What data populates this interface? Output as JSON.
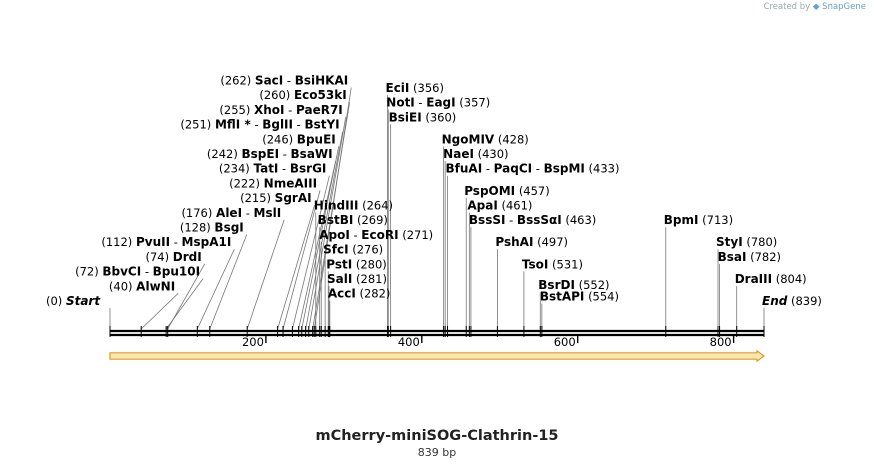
{
  "credit": {
    "prefix": "Created by",
    "brand": "SnapGene"
  },
  "title": "mCherry-miniSOG-Clathrin-15",
  "length_label": "839 bp",
  "colors": {
    "backbone": "#000000",
    "feature_fill": "#f7e8b4",
    "feature_stroke": "#e39a1e",
    "leader": "#777777"
  },
  "ruler": {
    "ticks": [
      200,
      400,
      600,
      800
    ],
    "total_bp": 839
  },
  "feature": {
    "name": "mCherry-miniSOG-Clathrin-15",
    "start": 0,
    "end": 839,
    "direction": "forward"
  },
  "sites": [
    {
      "id": "start",
      "row": 0,
      "pos": 0,
      "pos_label": "(0)",
      "parts": [
        {
          "text": "Start",
          "italic": true
        }
      ],
      "pos_after": false
    },
    {
      "id": "alwni",
      "row": 1,
      "pos": 40,
      "pos_label": "(40)",
      "parts": [
        {
          "text": "AlwNI"
        }
      ],
      "pos_after": false
    },
    {
      "id": "bbvci",
      "row": 2,
      "pos": 72,
      "pos_label": "(72)",
      "parts": [
        {
          "text": "BbvCI"
        },
        {
          "text": "Bpu10I"
        }
      ],
      "pos_after": false
    },
    {
      "id": "drdi",
      "row": 3,
      "pos": 74,
      "pos_label": "(74)",
      "parts": [
        {
          "text": "DrdI"
        }
      ],
      "pos_after": false
    },
    {
      "id": "pvuii",
      "row": 4,
      "pos": 112,
      "pos_label": "(112)",
      "parts": [
        {
          "text": "PvuII"
        },
        {
          "text": "MspA1I"
        }
      ],
      "pos_after": false
    },
    {
      "id": "bsgi",
      "row": 5,
      "pos": 128,
      "pos_label": "(128)",
      "parts": [
        {
          "text": "BsgI"
        }
      ],
      "pos_after": false
    },
    {
      "id": "alei",
      "row": 6,
      "pos": 176,
      "pos_label": "(176)",
      "parts": [
        {
          "text": "AleI"
        },
        {
          "text": "MslI"
        }
      ],
      "pos_after": false
    },
    {
      "id": "sgrai",
      "row": 7,
      "pos": 215,
      "pos_label": "(215)",
      "parts": [
        {
          "text": "SgrAI"
        }
      ],
      "pos_after": false
    },
    {
      "id": "nmeaiii",
      "row": 8,
      "pos": 222,
      "pos_label": "(222)",
      "parts": [
        {
          "text": "NmeAIII"
        }
      ],
      "pos_after": false
    },
    {
      "id": "tati",
      "row": 9,
      "pos": 234,
      "pos_label": "(234)",
      "parts": [
        {
          "text": "TatI"
        },
        {
          "text": "BsrGI"
        }
      ],
      "pos_after": false
    },
    {
      "id": "bspei",
      "row": 10,
      "pos": 242,
      "pos_label": "(242)",
      "parts": [
        {
          "text": "BspEI"
        },
        {
          "text": "BsaWI"
        }
      ],
      "pos_after": false
    },
    {
      "id": "bpuei",
      "row": 11,
      "pos": 246,
      "pos_label": "(246)",
      "parts": [
        {
          "text": "BpuEI"
        }
      ],
      "pos_after": false
    },
    {
      "id": "mfli",
      "row": 12,
      "pos": 251,
      "pos_label": "(251)",
      "parts": [
        {
          "text": "MflI *"
        },
        {
          "text": "BglII"
        },
        {
          "text": "BstYI"
        }
      ],
      "pos_after": false
    },
    {
      "id": "xhoi",
      "row": 13,
      "pos": 255,
      "pos_label": "(255)",
      "parts": [
        {
          "text": "XhoI"
        },
        {
          "text": "PaeR7I"
        }
      ],
      "pos_after": false
    },
    {
      "id": "eco53ki",
      "row": 14,
      "pos": 260,
      "pos_label": "(260)",
      "parts": [
        {
          "text": "Eco53kI"
        }
      ],
      "pos_after": false
    },
    {
      "id": "saci",
      "row": 15,
      "pos": 262,
      "pos_label": "(262)",
      "parts": [
        {
          "text": "SacI"
        },
        {
          "text": "BsiHKAI"
        }
      ],
      "pos_after": false
    },
    {
      "id": "hindiii",
      "row": 6.5,
      "pos": 264,
      "pos_label": "(264)",
      "parts": [
        {
          "text": "HindIII"
        }
      ],
      "pos_after": true
    },
    {
      "id": "bstbi",
      "row": 5.5,
      "pos": 269,
      "pos_label": "(269)",
      "parts": [
        {
          "text": "BstBI"
        }
      ],
      "pos_after": true
    },
    {
      "id": "apoi",
      "row": 4.5,
      "pos": 271,
      "pos_label": "(271)",
      "parts": [
        {
          "text": "ApoI"
        },
        {
          "text": "EcoRI"
        }
      ],
      "pos_after": true
    },
    {
      "id": "sfci",
      "row": 3.5,
      "pos": 276,
      "pos_label": "(276)",
      "parts": [
        {
          "text": "SfcI"
        }
      ],
      "pos_after": true
    },
    {
      "id": "psti",
      "row": 2.5,
      "pos": 280,
      "pos_label": "(280)",
      "parts": [
        {
          "text": "PstI"
        }
      ],
      "pos_after": true
    },
    {
      "id": "sali",
      "row": 1.5,
      "pos": 281,
      "pos_label": "(281)",
      "parts": [
        {
          "text": "SalI"
        }
      ],
      "pos_after": true
    },
    {
      "id": "acci",
      "row": 0.5,
      "pos": 282,
      "pos_label": "(282)",
      "parts": [
        {
          "text": "AccI"
        }
      ],
      "pos_after": true
    },
    {
      "id": "ecii",
      "row": 14.5,
      "pos": 356,
      "pos_label": "(356)",
      "parts": [
        {
          "text": "EciI"
        }
      ],
      "pos_after": true
    },
    {
      "id": "noti",
      "row": 13.5,
      "pos": 357,
      "pos_label": "(357)",
      "parts": [
        {
          "text": "NotI"
        },
        {
          "text": "EagI"
        }
      ],
      "pos_after": true
    },
    {
      "id": "bsiei",
      "row": 12.5,
      "pos": 360,
      "pos_label": "(360)",
      "parts": [
        {
          "text": "BsiEI"
        }
      ],
      "pos_after": true
    },
    {
      "id": "ngomiv",
      "row": 11,
      "pos": 428,
      "pos_label": "(428)",
      "parts": [
        {
          "text": "NgoMIV"
        }
      ],
      "pos_after": true
    },
    {
      "id": "naei",
      "row": 10,
      "pos": 430,
      "pos_label": "(430)",
      "parts": [
        {
          "text": "NaeI"
        }
      ],
      "pos_after": true
    },
    {
      "id": "bfuai",
      "row": 9,
      "pos": 433,
      "pos_label": "(433)",
      "parts": [
        {
          "text": "BfuAI"
        },
        {
          "text": "PaqCI"
        },
        {
          "text": "BspMI"
        }
      ],
      "pos_after": true
    },
    {
      "id": "pspomi",
      "row": 7.5,
      "pos": 457,
      "pos_label": "(457)",
      "parts": [
        {
          "text": "PspOMI"
        }
      ],
      "pos_after": true
    },
    {
      "id": "apai",
      "row": 6.5,
      "pos": 461,
      "pos_label": "(461)",
      "parts": [
        {
          "text": "ApaI"
        }
      ],
      "pos_after": true
    },
    {
      "id": "bsssi",
      "row": 5.5,
      "pos": 463,
      "pos_label": "(463)",
      "parts": [
        {
          "text": "BssSI"
        },
        {
          "text": "BssSαI"
        }
      ],
      "pos_after": true
    },
    {
      "id": "pshai",
      "row": 4,
      "pos": 497,
      "pos_label": "(497)",
      "parts": [
        {
          "text": "PshAI"
        }
      ],
      "pos_after": true
    },
    {
      "id": "tsoi",
      "row": 2.5,
      "pos": 531,
      "pos_label": "(531)",
      "parts": [
        {
          "text": "TsoI"
        }
      ],
      "pos_after": true
    },
    {
      "id": "bsrdi",
      "row": 1.1,
      "pos": 552,
      "pos_label": "(552)",
      "parts": [
        {
          "text": "BsrDI"
        }
      ],
      "pos_after": true
    },
    {
      "id": "bstapi",
      "row": 0.3,
      "pos": 554,
      "pos_label": "(554)",
      "parts": [
        {
          "text": "BstAPI"
        }
      ],
      "pos_after": true
    },
    {
      "id": "bpmi",
      "row": 5.5,
      "pos": 713,
      "pos_label": "(713)",
      "parts": [
        {
          "text": "BpmI"
        }
      ],
      "pos_after": true
    },
    {
      "id": "styi",
      "row": 4,
      "pos": 780,
      "pos_label": "(780)",
      "parts": [
        {
          "text": "StyI"
        }
      ],
      "pos_after": true
    },
    {
      "id": "bsai",
      "row": 3,
      "pos": 782,
      "pos_label": "(782)",
      "parts": [
        {
          "text": "BsaI"
        }
      ],
      "pos_after": true
    },
    {
      "id": "draiii",
      "row": 1.5,
      "pos": 804,
      "pos_label": "(804)",
      "parts": [
        {
          "text": "DraIII"
        }
      ],
      "pos_after": true
    },
    {
      "id": "end",
      "row": 0,
      "pos": 839,
      "pos_label": "(839)",
      "parts": [
        {
          "text": "End",
          "italic": true
        }
      ],
      "pos_after": true
    }
  ]
}
